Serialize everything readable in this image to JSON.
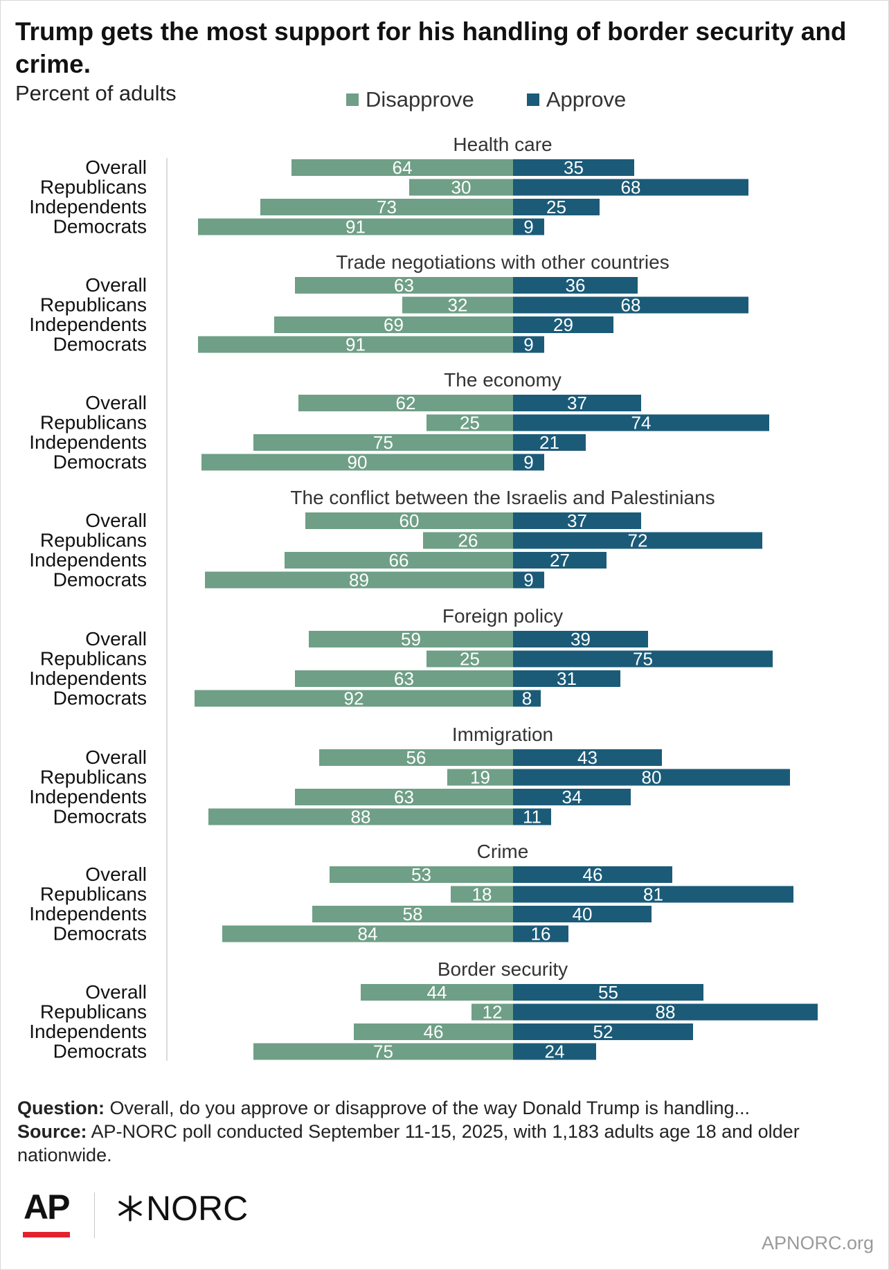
{
  "title": "Trump gets the most support for his handling of border security and crime.",
  "subtitle": "Percent of adults",
  "legend": {
    "disapprove": "Disapprove",
    "approve": "Approve"
  },
  "colors": {
    "disapprove": "#6f9f86",
    "approve": "#1b5b78"
  },
  "chart_data": {
    "type": "bar",
    "orientation": "horizontal diverging",
    "series": [
      {
        "name": "Disapprove",
        "color": "#6f9f86"
      },
      {
        "name": "Approve",
        "color": "#1b5b78"
      }
    ],
    "groups": [
      {
        "label": "Health care",
        "rows": [
          {
            "label": "Overall",
            "disapprove": 64,
            "approve": 35
          },
          {
            "label": "Republicans",
            "disapprove": 30,
            "approve": 68
          },
          {
            "label": "Independents",
            "disapprove": 73,
            "approve": 25
          },
          {
            "label": "Democrats",
            "disapprove": 91,
            "approve": 9
          }
        ]
      },
      {
        "label": "Trade negotiations with other countries",
        "rows": [
          {
            "label": "Overall",
            "disapprove": 63,
            "approve": 36
          },
          {
            "label": "Republicans",
            "disapprove": 32,
            "approve": 68
          },
          {
            "label": "Independents",
            "disapprove": 69,
            "approve": 29
          },
          {
            "label": "Democrats",
            "disapprove": 91,
            "approve": 9
          }
        ]
      },
      {
        "label": "The economy",
        "rows": [
          {
            "label": "Overall",
            "disapprove": 62,
            "approve": 37
          },
          {
            "label": "Republicans",
            "disapprove": 25,
            "approve": 74
          },
          {
            "label": "Independents",
            "disapprove": 75,
            "approve": 21
          },
          {
            "label": "Democrats",
            "disapprove": 90,
            "approve": 9
          }
        ]
      },
      {
        "label": "The conflict between the Israelis and Palestinians",
        "rows": [
          {
            "label": "Overall",
            "disapprove": 60,
            "approve": 37
          },
          {
            "label": "Republicans",
            "disapprove": 26,
            "approve": 72
          },
          {
            "label": "Independents",
            "disapprove": 66,
            "approve": 27
          },
          {
            "label": "Democrats",
            "disapprove": 89,
            "approve": 9
          }
        ]
      },
      {
        "label": "Foreign policy",
        "rows": [
          {
            "label": "Overall",
            "disapprove": 59,
            "approve": 39
          },
          {
            "label": "Republicans",
            "disapprove": 25,
            "approve": 75
          },
          {
            "label": "Independents",
            "disapprove": 63,
            "approve": 31
          },
          {
            "label": "Democrats",
            "disapprove": 92,
            "approve": 8
          }
        ]
      },
      {
        "label": "Immigration",
        "rows": [
          {
            "label": "Overall",
            "disapprove": 56,
            "approve": 43
          },
          {
            "label": "Republicans",
            "disapprove": 19,
            "approve": 80
          },
          {
            "label": "Independents",
            "disapprove": 63,
            "approve": 34
          },
          {
            "label": "Democrats",
            "disapprove": 88,
            "approve": 11
          }
        ]
      },
      {
        "label": "Crime",
        "rows": [
          {
            "label": "Overall",
            "disapprove": 53,
            "approve": 46
          },
          {
            "label": "Republicans",
            "disapprove": 18,
            "approve": 81
          },
          {
            "label": "Independents",
            "disapprove": 58,
            "approve": 40
          },
          {
            "label": "Democrats",
            "disapprove": 84,
            "approve": 16
          }
        ]
      },
      {
        "label": "Border security",
        "rows": [
          {
            "label": "Overall",
            "disapprove": 44,
            "approve": 55
          },
          {
            "label": "Republicans",
            "disapprove": 12,
            "approve": 88
          },
          {
            "label": "Independents",
            "disapprove": 46,
            "approve": 52
          },
          {
            "label": "Democrats",
            "disapprove": 75,
            "approve": 24
          }
        ]
      }
    ]
  },
  "footer": {
    "question_label": "Question:",
    "question_text": " Overall, do you approve or disapprove of the way Donald Trump is handling...",
    "source_label": "Source:",
    "source_text": " AP-NORC poll conducted September 11-15, 2025, with 1,183 adults age 18 and older nationwide."
  },
  "logos": {
    "ap": "AP",
    "norc": "NORC"
  },
  "site": "APNORC.org"
}
